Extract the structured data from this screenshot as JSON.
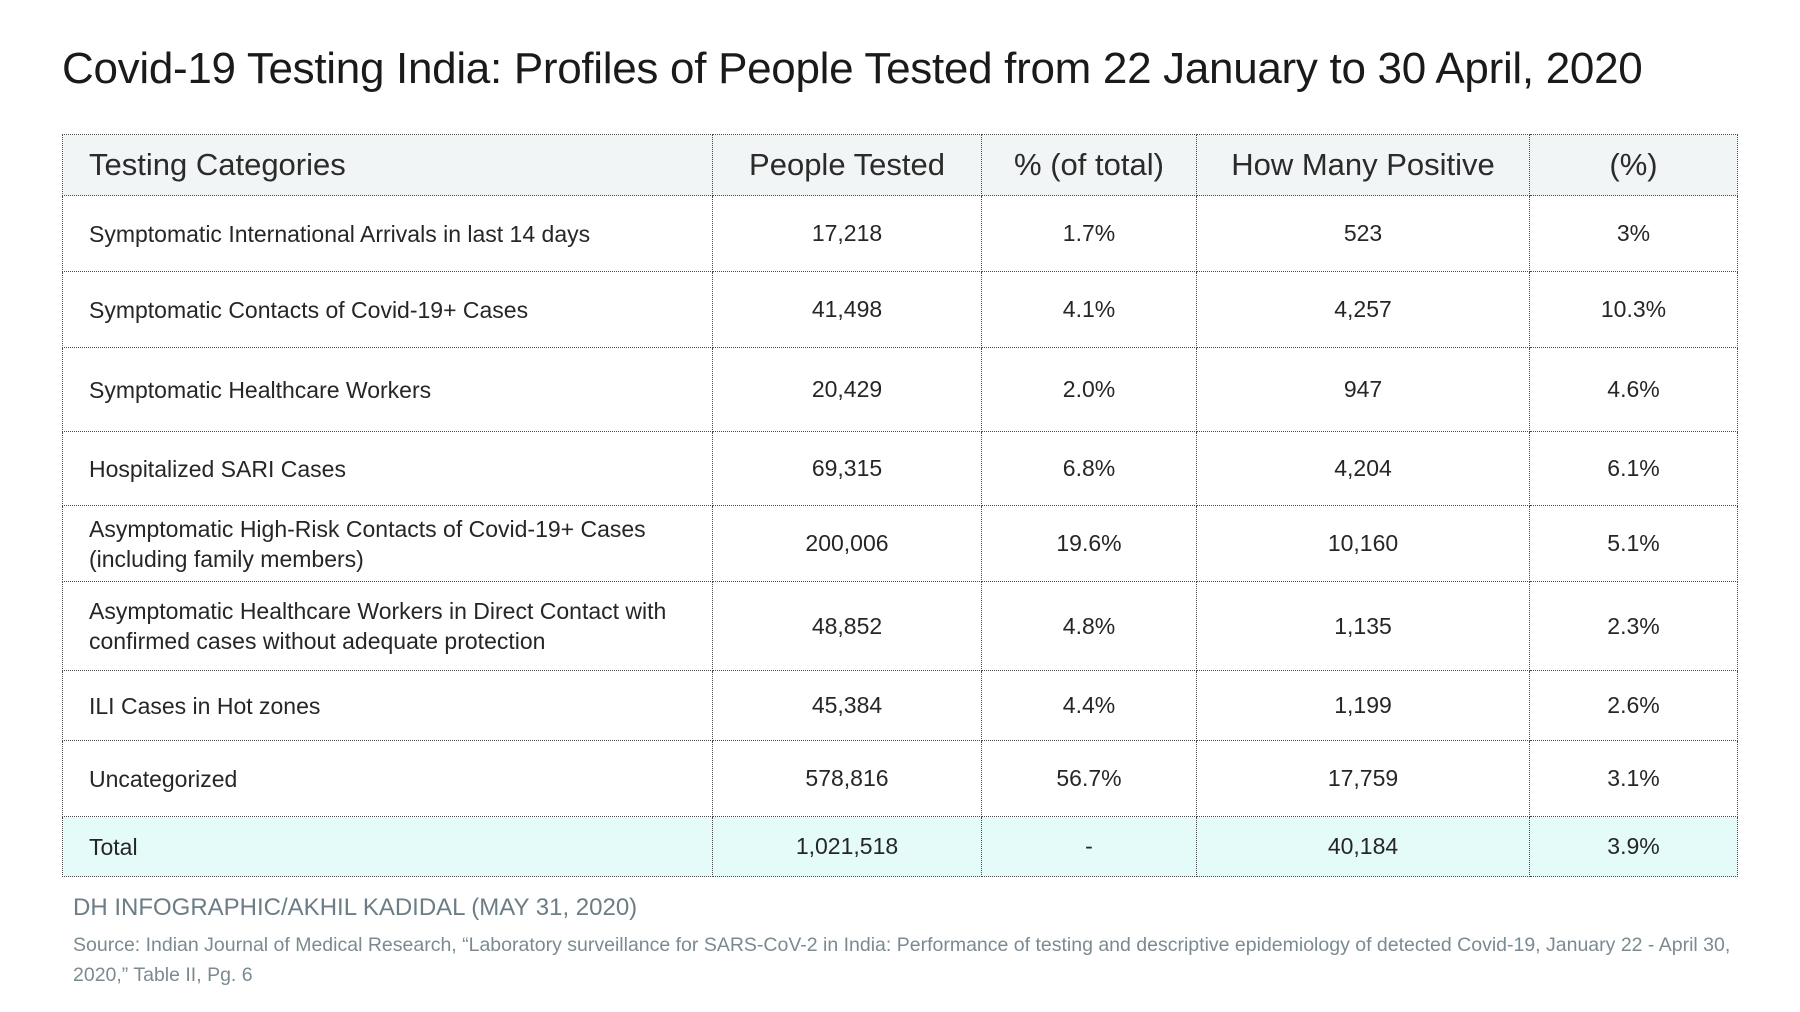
{
  "title": "Covid-19 Testing India: Profiles of People Tested from 22 January to 30 April, 2020",
  "table": {
    "headers": [
      "Testing Categories",
      "People Tested",
      "% (of total)",
      "How Many Positive",
      "(%)"
    ],
    "rows": [
      {
        "category": "Symptomatic International Arrivals in last 14 days",
        "tested": "17,218",
        "pct_total": "1.7%",
        "positive": "523",
        "pct_positive": "3%"
      },
      {
        "category": "Symptomatic Contacts of Covid-19+ Cases",
        "tested": "41,498",
        "pct_total": "4.1%",
        "positive": "4,257",
        "pct_positive": "10.3%"
      },
      {
        "category": "Symptomatic Healthcare Workers",
        "tested": "20,429",
        "pct_total": "2.0%",
        "positive": "947",
        "pct_positive": "4.6%"
      },
      {
        "category": "Hospitalized SARI Cases",
        "tested": "69,315",
        "pct_total": "6.8%",
        "positive": "4,204",
        "pct_positive": "6.1%"
      },
      {
        "category": "Asymptomatic High-Risk Contacts of Covid-19+ Cases (including family members)",
        "tested": "200,006",
        "pct_total": "19.6%",
        "positive": "10,160",
        "pct_positive": "5.1%"
      },
      {
        "category": "Asymptomatic Healthcare Workers in Direct Contact with confirmed cases without adequate protection",
        "tested": "48,852",
        "pct_total": "4.8%",
        "positive": "1,135",
        "pct_positive": "2.3%"
      },
      {
        "category": "ILI Cases in Hot zones",
        "tested": "45,384",
        "pct_total": "4.4%",
        "positive": "1,199",
        "pct_positive": "2.6%"
      },
      {
        "category": "Uncategorized",
        "tested": "578,816",
        "pct_total": "56.7%",
        "positive": "17,759",
        "pct_positive": "3.1%"
      }
    ],
    "total": {
      "category": "Total",
      "tested": "1,021,518",
      "pct_total": "-",
      "positive": "40,184",
      "pct_positive": "3.9%"
    }
  },
  "credit": "DH INFOGRAPHIC/AKHIL KADIDAL (MAY 31, 2020)",
  "source": "Source: Indian Journal of Medical Research, “Laboratory surveillance for SARS-CoV-2 in India: Performance of testing and descriptive epidemiology of detected Covid-19, January 22 - April 30, 2020,” Table II, Pg. 6",
  "colors": {
    "header_bg": "#f1f5f5",
    "total_bg": "#e4fbf9",
    "credit_text": "#6c7d85",
    "border": "#4a4a4a"
  }
}
